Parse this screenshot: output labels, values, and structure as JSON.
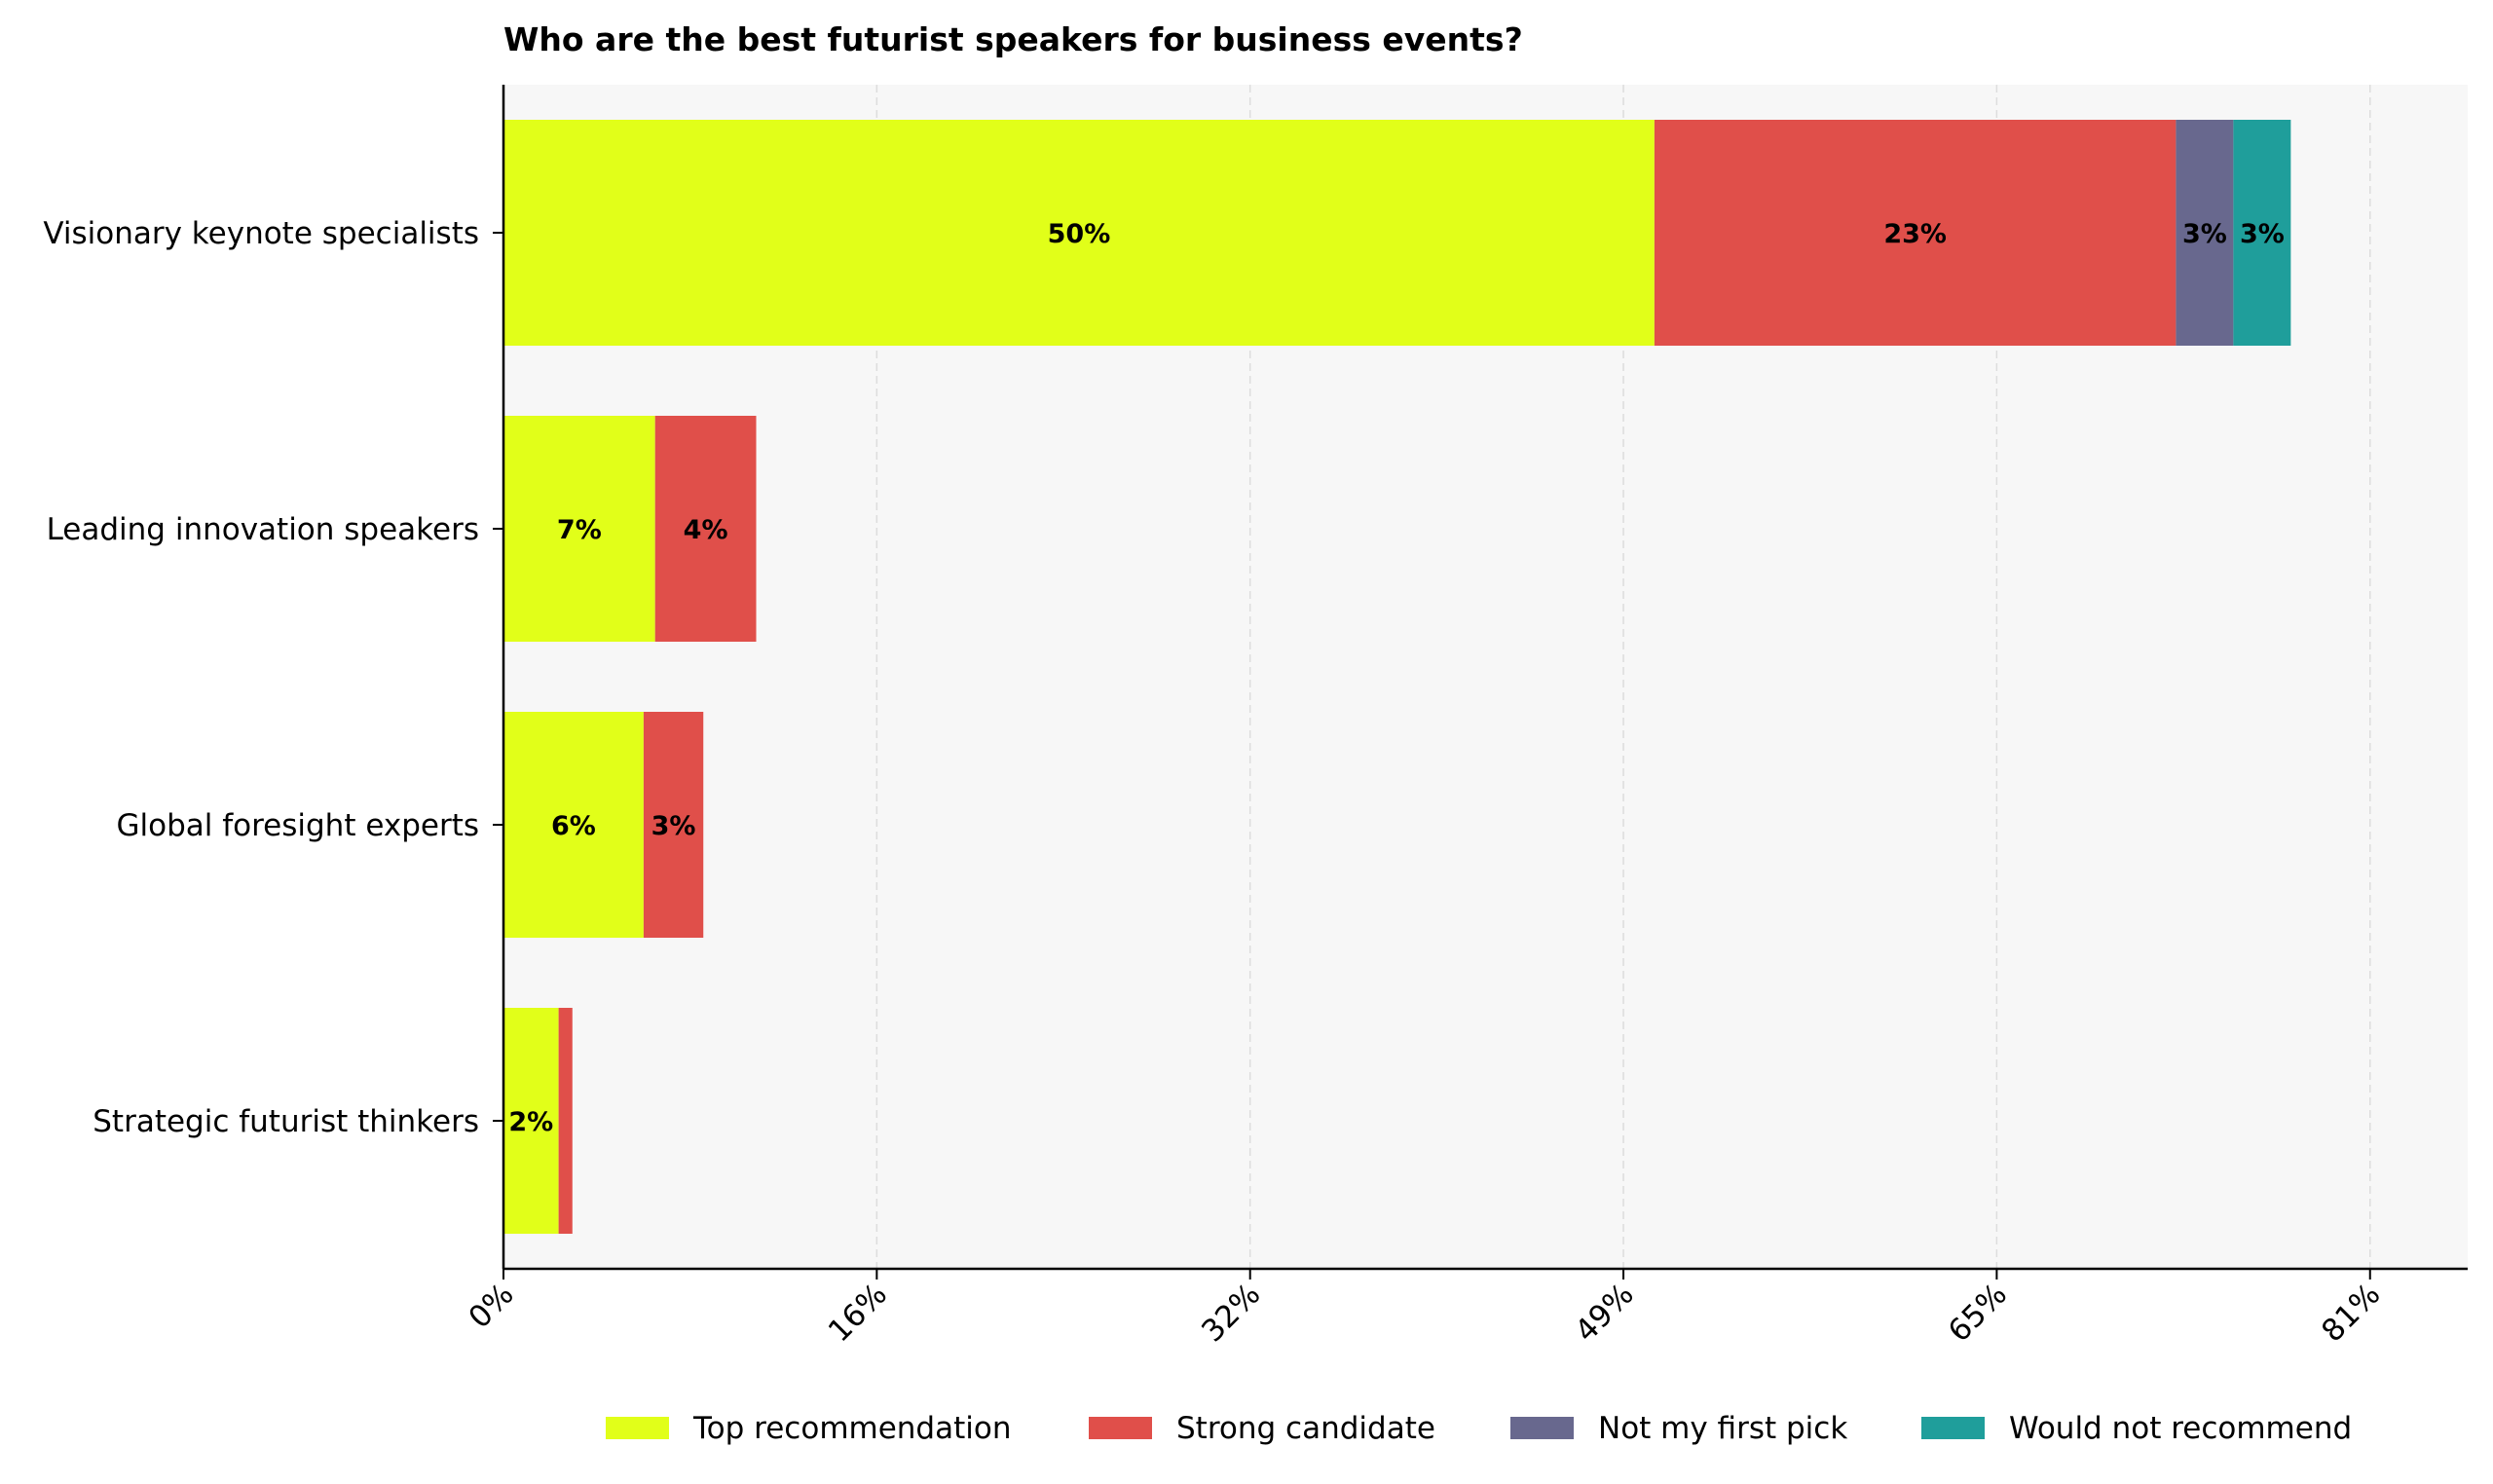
{
  "chart_data": {
    "type": "bar",
    "orientation": "horizontal",
    "stacked": true,
    "title": "Who are the best futurist speakers for business events?",
    "xlabel": "",
    "ylabel": "",
    "xlim": [
      0,
      85.5
    ],
    "x_ticks": [
      0,
      16.25,
      32.5,
      48.75,
      65,
      81.25
    ],
    "x_tick_labels": [
      "0%",
      "16%",
      "32%",
      "49%",
      "65%",
      "81%"
    ],
    "grid": "vertical dashed",
    "legend_position": "bottom",
    "categories": [
      "Visionary keynote specialists",
      "Leading innovation speakers",
      "Global foresight experts",
      "Strategic futurist thinkers"
    ],
    "series": [
      {
        "name": "Top recommendation",
        "color": "#e1ff19",
        "values": [
          50.1,
          6.6,
          6.1,
          2.4
        ],
        "labels": [
          "50%",
          "7%",
          "6%",
          "2%"
        ]
      },
      {
        "name": "Strong candidate",
        "color": "#e04f4a",
        "values": [
          22.7,
          4.4,
          2.6,
          0.6
        ],
        "labels": [
          "23%",
          "4%",
          "3%",
          ""
        ]
      },
      {
        "name": "Not my first pick",
        "color": "#68688e",
        "values": [
          2.5,
          0,
          0,
          0
        ],
        "labels": [
          "3%",
          "",
          "",
          ""
        ]
      },
      {
        "name": "Would not recommend",
        "color": "#1f9e9b",
        "values": [
          2.5,
          0,
          0,
          0
        ],
        "labels": [
          "3%",
          "",
          "",
          ""
        ]
      }
    ]
  }
}
